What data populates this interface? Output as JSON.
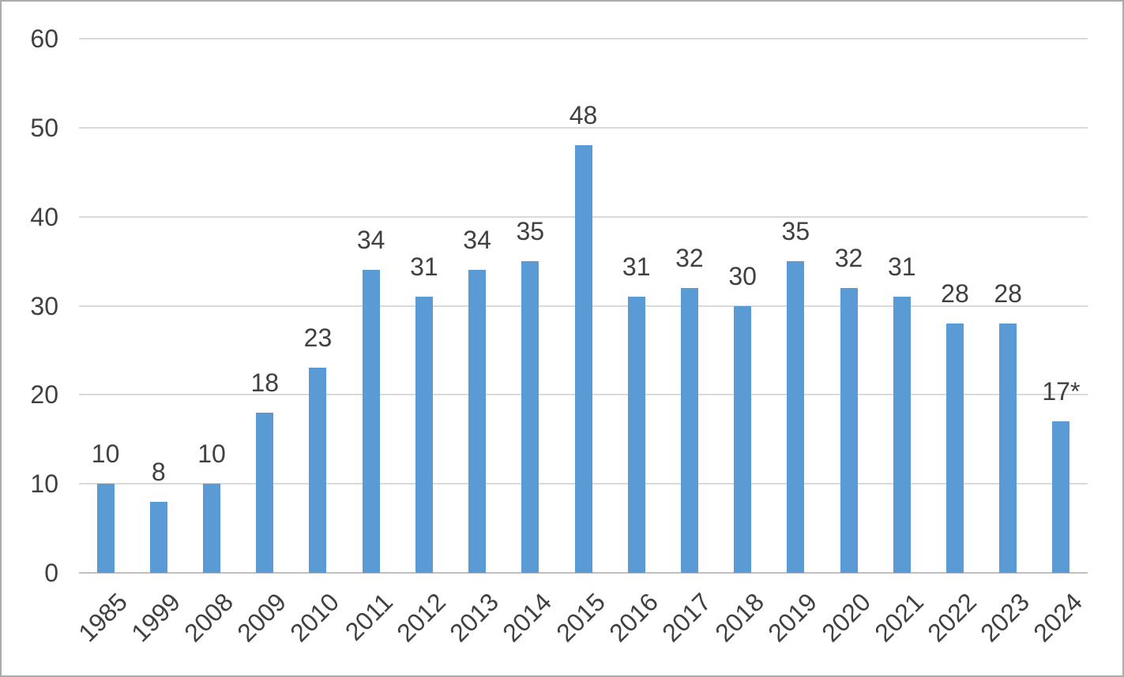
{
  "chart_data": {
    "type": "bar",
    "title": "",
    "xlabel": "",
    "ylabel": "",
    "categories": [
      "1985",
      "1999",
      "2008",
      "2009",
      "2010",
      "2011",
      "2012",
      "2013",
      "2014",
      "2015",
      "2016",
      "2017",
      "2018",
      "2019",
      "2020",
      "2021",
      "2022",
      "2023",
      "2024"
    ],
    "values": [
      10,
      8,
      10,
      18,
      23,
      34,
      31,
      34,
      35,
      48,
      31,
      32,
      30,
      35,
      32,
      31,
      28,
      28,
      17
    ],
    "value_labels": [
      "10",
      "8",
      "10",
      "18",
      "23",
      "34",
      "31",
      "34",
      "35",
      "48",
      "31",
      "32",
      "30",
      "35",
      "32",
      "31",
      "28",
      "28",
      "17*"
    ],
    "ylim": [
      0,
      60
    ],
    "y_ticks": [
      0,
      10,
      20,
      30,
      40,
      50,
      60
    ],
    "grid": true,
    "legend": false,
    "colors": {
      "bar": "#5B9BD5",
      "gridline": "#D9D9D9",
      "axis_line": "#BFBFBF",
      "label_text": "#404040",
      "background": "#FFFFFF",
      "page_border": "#ABABAB"
    }
  }
}
